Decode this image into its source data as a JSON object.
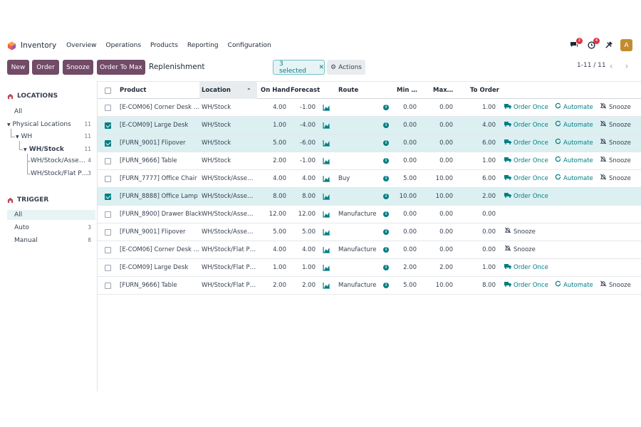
{
  "navbar": {
    "app_name": "Inventory",
    "menu": [
      "Overview",
      "Operations",
      "Products",
      "Reporting",
      "Configuration"
    ],
    "messages_badge": "2",
    "activities_badge": "4",
    "avatar_letter": "A"
  },
  "control_panel": {
    "buttons": [
      "New",
      "Order",
      "Snooze",
      "Order To Max"
    ],
    "breadcrumb": "Replenishment",
    "selected_label": "3 selected",
    "actions_label": "Actions",
    "pager_value": "1-11 / 11"
  },
  "sidebar": {
    "locations_title": "LOCATIONS",
    "locations": [
      {
        "label": "All",
        "count": ""
      },
      {
        "label": "Physical Locations",
        "count": "11"
      },
      {
        "label": "WH",
        "count": "11"
      },
      {
        "label": "WH/Stock",
        "count": "11"
      },
      {
        "label": "WH/Stock/Asse…",
        "count": "4"
      },
      {
        "label": "WH/Stock/Flat P…",
        "count": "3"
      }
    ],
    "trigger_title": "TRIGGER",
    "triggers": [
      {
        "label": "All",
        "count": ""
      },
      {
        "label": "Auto",
        "count": "3"
      },
      {
        "label": "Manual",
        "count": "8"
      }
    ]
  },
  "table": {
    "headers": {
      "product": "Product",
      "location": "Location",
      "on_hand": "On Hand",
      "forecast": "Forecast",
      "route": "Route",
      "min": "Min …",
      "max": "Max…",
      "to_order": "To Order"
    },
    "action_labels": {
      "order_once": "Order Once",
      "automate": "Automate",
      "snooze": "Snooze"
    },
    "rows": [
      {
        "product": "[E-COM06] Corner Desk …",
        "location": "WH/Stock",
        "on_hand": "4.00",
        "forecast": "-1.00",
        "route": "",
        "min": "0.00",
        "max": "0.00",
        "to_order": "1.00",
        "selected": false,
        "actions": [
          "order_once",
          "automate",
          "snooze"
        ]
      },
      {
        "product": "[E-COM09] Large Desk",
        "location": "WH/Stock",
        "on_hand": "1.00",
        "forecast": "-4.00",
        "route": "",
        "min": "0.00",
        "max": "0.00",
        "to_order": "4.00",
        "selected": true,
        "actions": [
          "order_once",
          "automate",
          "snooze"
        ]
      },
      {
        "product": "[FURN_9001] Flipover",
        "location": "WH/Stock",
        "on_hand": "5.00",
        "forecast": "-6.00",
        "route": "",
        "min": "0.00",
        "max": "0.00",
        "to_order": "6.00",
        "selected": true,
        "actions": [
          "order_once",
          "automate",
          "snooze"
        ]
      },
      {
        "product": "[FURN_9666] Table",
        "location": "WH/Stock",
        "on_hand": "2.00",
        "forecast": "-1.00",
        "route": "",
        "min": "0.00",
        "max": "0.00",
        "to_order": "1.00",
        "selected": false,
        "actions": [
          "order_once",
          "automate",
          "snooze"
        ]
      },
      {
        "product": "[FURN_7777] Office Chair",
        "location": "WH/Stock/Asse…",
        "on_hand": "4.00",
        "forecast": "4.00",
        "route": "Buy",
        "min": "5.00",
        "max": "10.00",
        "to_order": "6.00",
        "selected": false,
        "actions": [
          "order_once",
          "automate",
          "snooze"
        ]
      },
      {
        "product": "[FURN_8888] Office Lamp",
        "location": "WH/Stock/Asse…",
        "on_hand": "8.00",
        "forecast": "8.00",
        "route": "",
        "min": "10.00",
        "max": "10.00",
        "to_order": "2.00",
        "selected": true,
        "actions": [
          "order_once"
        ]
      },
      {
        "product": "[FURN_8900] Drawer Black",
        "location": "WH/Stock/Asse…",
        "on_hand": "12.00",
        "forecast": "12.00",
        "route": "Manufacture",
        "min": "0.00",
        "max": "0.00",
        "to_order": "0.00",
        "selected": false,
        "actions": []
      },
      {
        "product": "[FURN_9001] Flipover",
        "location": "WH/Stock/Asse…",
        "on_hand": "5.00",
        "forecast": "5.00",
        "route": "",
        "min": "0.00",
        "max": "0.00",
        "to_order": "0.00",
        "selected": false,
        "actions": [
          "snooze_only"
        ]
      },
      {
        "product": "[E-COM06] Corner Desk …",
        "location": "WH/Stock/Flat P…",
        "on_hand": "4.00",
        "forecast": "4.00",
        "route": "Manufacture",
        "min": "0.00",
        "max": "0.00",
        "to_order": "0.00",
        "selected": false,
        "actions": [
          "snooze_only"
        ]
      },
      {
        "product": "[E-COM09] Large Desk",
        "location": "WH/Stock/Flat P…",
        "on_hand": "1.00",
        "forecast": "1.00",
        "route": "",
        "min": "2.00",
        "max": "2.00",
        "to_order": "1.00",
        "selected": false,
        "actions": [
          "order_once"
        ]
      },
      {
        "product": "[FURN_9666] Table",
        "location": "WH/Stock/Flat P…",
        "on_hand": "2.00",
        "forecast": "2.00",
        "route": "Manufacture",
        "min": "5.00",
        "max": "10.00",
        "to_order": "8.00",
        "selected": false,
        "actions": [
          "order_once",
          "automate",
          "snooze"
        ]
      }
    ]
  },
  "colors": {
    "brand": "#714b67",
    "teal": "#017e84",
    "selected_row": "#dcf0f2"
  }
}
